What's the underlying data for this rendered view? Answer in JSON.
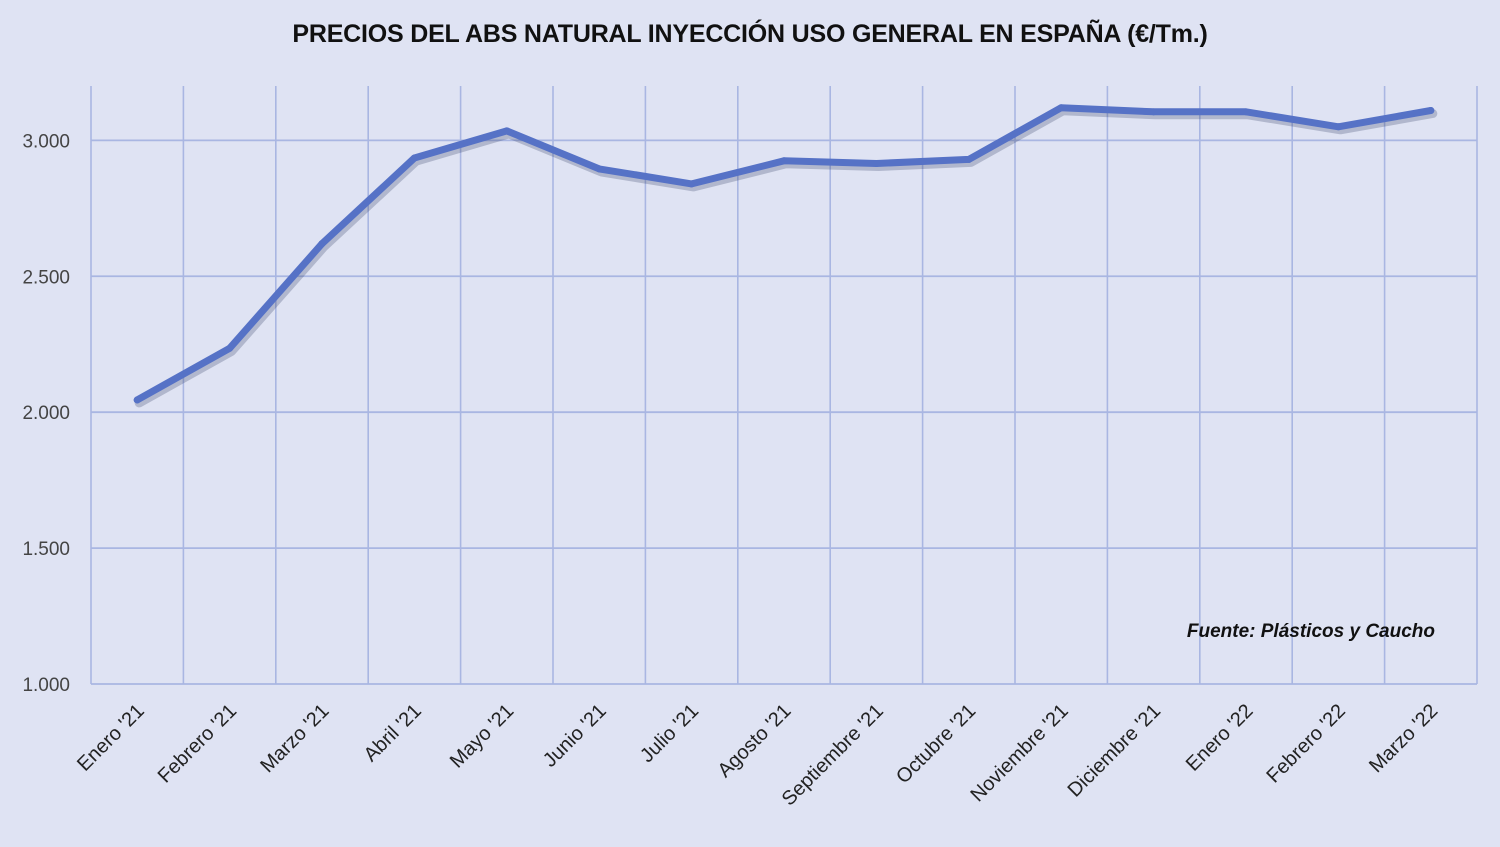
{
  "chart_data": {
    "type": "line",
    "title": "PRECIOS DEL ABS NATURAL INYECCIÓN  USO GENERAL EN ESPAÑA (€/Tm.)",
    "categories": [
      "Enero '21",
      "Febrero '21",
      "Marzo '21",
      "Abril '21",
      "Mayo '21",
      "Junio '21",
      "Julio '21",
      "Agosto '21",
      "Septiembre '21",
      "Octubre '21",
      "Noviembre '21",
      "Diciembre '21",
      "Enero '22",
      "Febrero '22",
      "Marzo '22"
    ],
    "series": [
      {
        "values": [
          2045,
          2235,
          2620,
          2935,
          3035,
          2895,
          2840,
          2925,
          2915,
          2930,
          3120,
          3105,
          3105,
          3050,
          3110
        ]
      }
    ],
    "ylim": [
      1000,
      3200
    ],
    "yticks": [
      1000,
      1500,
      2000,
      2500,
      3000
    ],
    "ytick_labels": [
      "1.000",
      "1.500",
      "2.000",
      "2.500",
      "3.000"
    ],
    "xlabel": "",
    "ylabel": "",
    "grid": true,
    "line_color": "#5672c6",
    "grid_color": "#a9b6e2",
    "annotation": "Fuente: Plásticos y Caucho"
  }
}
